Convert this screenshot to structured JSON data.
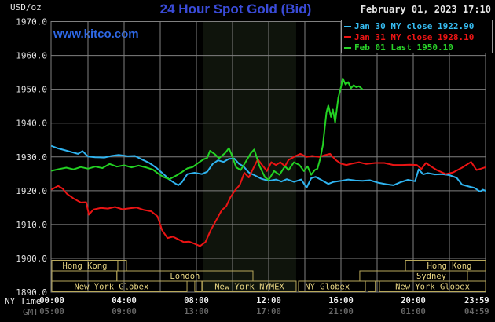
{
  "header": {
    "unit": "USD/oz",
    "title": "24 Hour Spot Gold (Bid)",
    "timestamp": "February 01, 2023 17:10",
    "watermark": "www.kitco.com"
  },
  "legend": {
    "items": [
      {
        "text": "Jan 30 NY close 1922.90",
        "color": "#36bdf2"
      },
      {
        "text": "Jan 31 NY close 1928.10",
        "color": "#ee1515"
      },
      {
        "text": "Feb 01 Last 1950.10",
        "color": "#2ad42a"
      }
    ]
  },
  "axis": {
    "x_label_primary": "NY Time",
    "x_label_secondary": "GMT",
    "y_ticks": [
      "1970.0",
      "1960.0",
      "1950.0",
      "1940.0",
      "1930.0",
      "1920.0",
      "1910.0",
      "1900.0",
      "1890.0"
    ],
    "x_ticks_primary": [
      "00:00",
      "04:00",
      "08:00",
      "12:00",
      "16:00",
      "20:00",
      "23:59"
    ],
    "x_ticks_secondary": [
      "05:00",
      "09:00",
      "13:00",
      "17:00",
      "21:00",
      "01:00",
      "04:59"
    ]
  },
  "colors": {
    "background": "#000000",
    "grid": "#808080",
    "band": "#0f140c",
    "session_border": "#b9a95b",
    "session_text": "#e8d583",
    "y_tick_text": "#e0e0e0",
    "x_tick_primary": "#f2f2f2",
    "x_tick_secondary": "#686868",
    "jan30": "#2fb3ef",
    "jan31": "#ea1414",
    "feb01": "#23d223"
  },
  "chart_data": {
    "type": "line",
    "title": "24 Hour Spot Gold (Bid)",
    "ylabel": "USD/oz",
    "ylim": [
      1890,
      1970
    ],
    "y_tick_step": 10,
    "xlim_hours": [
      0,
      24
    ],
    "x_gridline_step_hours": 2,
    "x_tick_hours": [
      0,
      4,
      8,
      12,
      16,
      20,
      23.983
    ],
    "highlight_band_hours": [
      8.35,
      13.52
    ],
    "legend_position": "top-right",
    "series": [
      {
        "name": "Jan 30 NY close",
        "close": 1922.9,
        "color_key": "jan30",
        "points": [
          [
            0.0,
            1933.2
          ],
          [
            0.3,
            1932.6
          ],
          [
            0.7,
            1932.0
          ],
          [
            1.1,
            1931.4
          ],
          [
            1.45,
            1930.9
          ],
          [
            1.7,
            1931.7
          ],
          [
            2.0,
            1930.1
          ],
          [
            2.4,
            1929.9
          ],
          [
            2.9,
            1929.8
          ],
          [
            3.3,
            1930.3
          ],
          [
            3.7,
            1930.6
          ],
          [
            4.2,
            1930.2
          ],
          [
            4.6,
            1930.3
          ],
          [
            5.0,
            1929.2
          ],
          [
            5.4,
            1928.2
          ],
          [
            5.8,
            1926.7
          ],
          [
            6.2,
            1924.8
          ],
          [
            6.5,
            1923.3
          ],
          [
            6.8,
            1922.2
          ],
          [
            7.0,
            1921.6
          ],
          [
            7.2,
            1922.5
          ],
          [
            7.5,
            1924.9
          ],
          [
            7.9,
            1925.3
          ],
          [
            8.3,
            1924.9
          ],
          [
            8.6,
            1925.6
          ],
          [
            8.9,
            1927.9
          ],
          [
            9.2,
            1929.0
          ],
          [
            9.5,
            1928.5
          ],
          [
            9.8,
            1929.4
          ],
          [
            10.1,
            1929.5
          ],
          [
            10.35,
            1928.0
          ],
          [
            10.6,
            1927.2
          ],
          [
            10.9,
            1925.4
          ],
          [
            11.2,
            1924.6
          ],
          [
            11.6,
            1923.5
          ],
          [
            12.0,
            1922.9
          ],
          [
            12.4,
            1923.3
          ],
          [
            12.7,
            1922.7
          ],
          [
            13.0,
            1923.4
          ],
          [
            13.4,
            1922.6
          ],
          [
            13.8,
            1923.3
          ],
          [
            14.1,
            1920.9
          ],
          [
            14.35,
            1923.7
          ],
          [
            14.6,
            1924.1
          ],
          [
            14.9,
            1923.2
          ],
          [
            15.3,
            1922.0
          ],
          [
            15.6,
            1922.6
          ],
          [
            16.0,
            1922.9
          ],
          [
            16.4,
            1923.3
          ],
          [
            16.8,
            1923.0
          ],
          [
            17.2,
            1922.9
          ],
          [
            17.6,
            1923.1
          ],
          [
            18.1,
            1922.3
          ],
          [
            18.5,
            1921.9
          ],
          [
            18.9,
            1921.6
          ],
          [
            19.3,
            1922.5
          ],
          [
            19.7,
            1923.2
          ],
          [
            20.1,
            1922.8
          ],
          [
            20.3,
            1926.3
          ],
          [
            20.55,
            1924.8
          ],
          [
            20.8,
            1925.2
          ],
          [
            21.2,
            1924.8
          ],
          [
            21.6,
            1924.9
          ],
          [
            22.0,
            1924.6
          ],
          [
            22.4,
            1923.8
          ],
          [
            22.7,
            1921.8
          ],
          [
            23.1,
            1921.2
          ],
          [
            23.4,
            1920.8
          ],
          [
            23.7,
            1919.7
          ],
          [
            23.85,
            1920.3
          ],
          [
            23.98,
            1920.0
          ]
        ]
      },
      {
        "name": "Jan 31 NY close",
        "close": 1928.1,
        "color_key": "jan31",
        "points": [
          [
            0.0,
            1920.4
          ],
          [
            0.35,
            1921.4
          ],
          [
            0.6,
            1920.6
          ],
          [
            0.85,
            1919.0
          ],
          [
            1.2,
            1917.7
          ],
          [
            1.6,
            1916.5
          ],
          [
            1.9,
            1916.6
          ],
          [
            2.05,
            1912.9
          ],
          [
            2.3,
            1914.4
          ],
          [
            2.7,
            1914.9
          ],
          [
            3.1,
            1914.7
          ],
          [
            3.5,
            1915.2
          ],
          [
            3.9,
            1914.5
          ],
          [
            4.3,
            1914.8
          ],
          [
            4.7,
            1915.0
          ],
          [
            5.1,
            1914.3
          ],
          [
            5.5,
            1913.9
          ],
          [
            5.85,
            1912.4
          ],
          [
            6.1,
            1908.3
          ],
          [
            6.4,
            1906.0
          ],
          [
            6.7,
            1906.4
          ],
          [
            7.0,
            1905.6
          ],
          [
            7.3,
            1904.8
          ],
          [
            7.6,
            1904.9
          ],
          [
            7.9,
            1904.3
          ],
          [
            8.2,
            1903.6
          ],
          [
            8.5,
            1904.8
          ],
          [
            8.8,
            1908.4
          ],
          [
            9.1,
            1911.3
          ],
          [
            9.4,
            1914.2
          ],
          [
            9.65,
            1915.4
          ],
          [
            9.9,
            1918.2
          ],
          [
            10.15,
            1920.2
          ],
          [
            10.4,
            1921.7
          ],
          [
            10.65,
            1925.3
          ],
          [
            10.9,
            1923.9
          ],
          [
            11.15,
            1926.6
          ],
          [
            11.4,
            1929.3
          ],
          [
            11.65,
            1927.5
          ],
          [
            11.9,
            1925.8
          ],
          [
            12.15,
            1928.4
          ],
          [
            12.4,
            1927.6
          ],
          [
            12.65,
            1928.4
          ],
          [
            12.9,
            1927.2
          ],
          [
            13.1,
            1929.1
          ],
          [
            13.5,
            1930.3
          ],
          [
            13.75,
            1930.9
          ],
          [
            14.1,
            1930.0
          ],
          [
            14.4,
            1930.3
          ],
          [
            14.8,
            1930.0
          ],
          [
            15.1,
            1930.5
          ],
          [
            15.4,
            1930.9
          ],
          [
            15.7,
            1929.1
          ],
          [
            16.0,
            1928.0
          ],
          [
            16.3,
            1927.6
          ],
          [
            16.6,
            1928.0
          ],
          [
            17.0,
            1928.4
          ],
          [
            17.4,
            1927.9
          ],
          [
            17.9,
            1928.2
          ],
          [
            18.4,
            1928.2
          ],
          [
            18.9,
            1927.6
          ],
          [
            19.4,
            1927.6
          ],
          [
            19.8,
            1927.7
          ],
          [
            20.2,
            1927.6
          ],
          [
            20.45,
            1926.4
          ],
          [
            20.7,
            1928.2
          ],
          [
            21.0,
            1927.1
          ],
          [
            21.3,
            1926.1
          ],
          [
            21.8,
            1924.9
          ],
          [
            22.2,
            1925.4
          ],
          [
            22.7,
            1926.8
          ],
          [
            23.2,
            1928.5
          ],
          [
            23.5,
            1926.1
          ],
          [
            23.75,
            1926.5
          ],
          [
            23.98,
            1926.9
          ]
        ]
      },
      {
        "name": "Feb 01 Last",
        "last": 1950.1,
        "color_key": "feb01",
        "points": [
          [
            0.0,
            1925.9
          ],
          [
            0.4,
            1926.4
          ],
          [
            0.8,
            1926.8
          ],
          [
            1.2,
            1926.3
          ],
          [
            1.6,
            1927.0
          ],
          [
            2.0,
            1926.5
          ],
          [
            2.4,
            1927.1
          ],
          [
            2.8,
            1926.7
          ],
          [
            3.2,
            1927.9
          ],
          [
            3.6,
            1927.1
          ],
          [
            4.0,
            1927.5
          ],
          [
            4.4,
            1926.9
          ],
          [
            4.8,
            1927.4
          ],
          [
            5.2,
            1926.9
          ],
          [
            5.6,
            1926.2
          ],
          [
            5.9,
            1925.0
          ],
          [
            6.2,
            1924.0
          ],
          [
            6.5,
            1923.4
          ],
          [
            6.9,
            1924.5
          ],
          [
            7.2,
            1925.5
          ],
          [
            7.5,
            1926.6
          ],
          [
            7.8,
            1927.0
          ],
          [
            8.1,
            1928.2
          ],
          [
            8.4,
            1929.3
          ],
          [
            8.6,
            1929.7
          ],
          [
            8.75,
            1931.8
          ],
          [
            9.0,
            1930.9
          ],
          [
            9.25,
            1929.6
          ],
          [
            9.6,
            1931.2
          ],
          [
            9.8,
            1932.6
          ],
          [
            10.0,
            1930.0
          ],
          [
            10.2,
            1926.9
          ],
          [
            10.45,
            1926.1
          ],
          [
            10.7,
            1928.3
          ],
          [
            11.0,
            1931.0
          ],
          [
            11.2,
            1932.2
          ],
          [
            11.5,
            1927.2
          ],
          [
            11.8,
            1923.9
          ],
          [
            12.0,
            1923.2
          ],
          [
            12.3,
            1925.8
          ],
          [
            12.6,
            1924.7
          ],
          [
            12.9,
            1927.2
          ],
          [
            13.1,
            1926.1
          ],
          [
            13.4,
            1928.4
          ],
          [
            13.7,
            1927.6
          ],
          [
            13.95,
            1925.8
          ],
          [
            14.15,
            1927.2
          ],
          [
            14.35,
            1924.7
          ],
          [
            14.55,
            1926.1
          ],
          [
            14.7,
            1926.5
          ],
          [
            14.85,
            1929.5
          ],
          [
            15.0,
            1933.5
          ],
          [
            15.1,
            1938.5
          ],
          [
            15.2,
            1943.2
          ],
          [
            15.3,
            1945.2
          ],
          [
            15.45,
            1941.8
          ],
          [
            15.55,
            1944.0
          ],
          [
            15.68,
            1940.2
          ],
          [
            15.85,
            1947.5
          ],
          [
            16.0,
            1950.6
          ],
          [
            16.1,
            1953.2
          ],
          [
            16.25,
            1951.4
          ],
          [
            16.4,
            1952.1
          ],
          [
            16.55,
            1950.3
          ],
          [
            16.7,
            1951.2
          ],
          [
            16.85,
            1950.6
          ],
          [
            17.0,
            1950.9
          ],
          [
            17.17,
            1950.1
          ]
        ]
      }
    ],
    "sessions": [
      {
        "row": 0,
        "x1h": 0.0,
        "x2h": 3.65,
        "label": "Hong Kong"
      },
      {
        "row": 0,
        "x1h": 3.65,
        "x2h": 4.13,
        "label": ""
      },
      {
        "row": 0,
        "x1h": 19.57,
        "x2h": 24.0,
        "label": "Hong Kong",
        "label_cx_h": 22.0
      },
      {
        "row": 1,
        "x1h": 0.0,
        "x2h": 3.6,
        "label": ""
      },
      {
        "row": 1,
        "x1h": 3.6,
        "x2h": 11.13,
        "label": "London"
      },
      {
        "row": 1,
        "x1h": 17.04,
        "x2h": 23.0,
        "label": "Sydney",
        "label_cx_h": 21.0
      },
      {
        "row": 2,
        "x1h": 0.0,
        "x2h": 7.48,
        "label": "New York Globex",
        "label_cx_h": 3.3
      },
      {
        "row": 2,
        "x1h": 7.91,
        "x2h": 8.3,
        "label": ""
      },
      {
        "row": 2,
        "x1h": 8.35,
        "x2h": 13.52,
        "label": "New York NYMEX"
      },
      {
        "row": 2,
        "x1h": 13.65,
        "x2h": 17.35,
        "label": "NY Globex",
        "label_cx_h": 15.25
      },
      {
        "row": 2,
        "x1h": 17.5,
        "x2h": 17.9,
        "label": ""
      },
      {
        "row": 2,
        "x1h": 18.13,
        "x2h": 24.0,
        "label": "New York Globex"
      }
    ]
  }
}
